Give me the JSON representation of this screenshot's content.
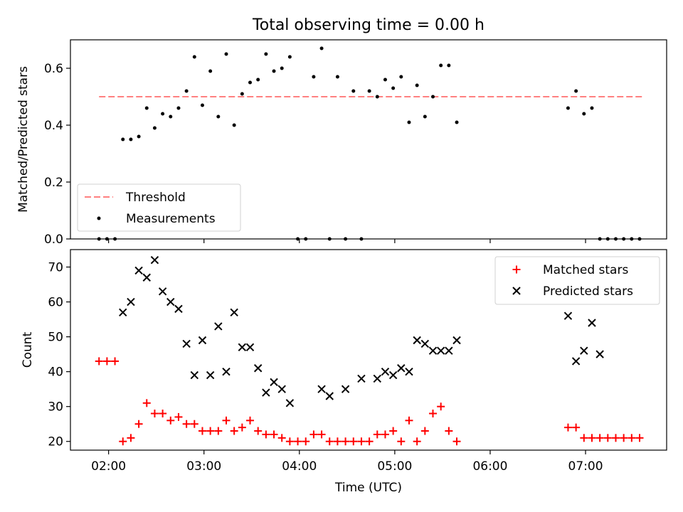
{
  "title": "Total observing time = 0.00 h",
  "chart_data": [
    {
      "type": "scatter",
      "name": "ratio-panel",
      "ylabel": "Matched/Predicted stars",
      "ylim": [
        0,
        0.7
      ],
      "yticks": [
        0.0,
        0.2,
        0.4,
        0.6
      ],
      "ytick_labels": [
        "0.0",
        "0.2",
        "0.4",
        "0.6"
      ],
      "xlim": [
        "01:36",
        "07:51"
      ],
      "threshold": {
        "value": 0.5,
        "x_start": "01:54",
        "x_end": "07:36",
        "color": "#ff8080"
      },
      "legend": {
        "position": "lower-left",
        "threshold_label": "Threshold",
        "measurements_label": "Measurements"
      },
      "series": [
        {
          "name": "Measurements",
          "color": "#000000",
          "x": [
            "01:54",
            "01:59",
            "02:04",
            "02:09",
            "02:14",
            "02:19",
            "02:24",
            "02:29",
            "02:34",
            "02:39",
            "02:44",
            "02:49",
            "02:54",
            "02:59",
            "03:04",
            "03:09",
            "03:14",
            "03:19",
            "03:24",
            "03:29",
            "03:34",
            "03:39",
            "03:44",
            "03:49",
            "03:54",
            "03:59",
            "04:04",
            "04:09",
            "04:14",
            "04:19",
            "04:24",
            "04:29",
            "04:34",
            "04:39",
            "04:44",
            "04:49",
            "04:54",
            "04:59",
            "05:04",
            "05:09",
            "05:14",
            "05:19",
            "05:24",
            "05:29",
            "05:34",
            "05:39",
            "06:49",
            "06:54",
            "06:59",
            "07:04",
            "07:09",
            "07:14",
            "07:19",
            "07:24",
            "07:29",
            "07:34"
          ],
          "y": [
            0.0,
            0.0,
            0.0,
            0.35,
            0.35,
            0.36,
            0.46,
            0.39,
            0.44,
            0.43,
            0.46,
            0.52,
            0.64,
            0.47,
            0.59,
            0.43,
            0.65,
            0.4,
            0.51,
            0.55,
            0.56,
            0.65,
            0.59,
            0.6,
            0.64,
            0.0,
            0.0,
            0.57,
            0.67,
            0.0,
            0.57,
            0.0,
            0.52,
            0.0,
            0.52,
            0.5,
            0.56,
            0.53,
            0.57,
            0.41,
            0.54,
            0.43,
            0.5,
            0.61,
            0.61,
            0.41,
            0.46,
            0.52,
            0.44,
            0.46,
            0.0,
            0.0,
            0.0,
            0.0,
            0.0,
            0.0
          ]
        }
      ]
    },
    {
      "type": "scatter",
      "name": "count-panel",
      "xlabel": "Time (UTC)",
      "ylabel": "Count",
      "ylim": [
        17.5,
        75
      ],
      "yticks": [
        20,
        30,
        40,
        50,
        60,
        70
      ],
      "xlim": [
        "01:36",
        "07:51"
      ],
      "xticks": [
        "02:00",
        "03:00",
        "04:00",
        "05:00",
        "06:00",
        "07:00"
      ],
      "legend": {
        "position": "top-right"
      },
      "series": [
        {
          "name": "Matched stars",
          "color": "#ff0000",
          "marker": "plus",
          "x": [
            "01:54",
            "01:59",
            "02:04",
            "02:09",
            "02:14",
            "02:19",
            "02:24",
            "02:29",
            "02:34",
            "02:39",
            "02:44",
            "02:49",
            "02:54",
            "02:59",
            "03:04",
            "03:09",
            "03:14",
            "03:19",
            "03:24",
            "03:29",
            "03:34",
            "03:39",
            "03:44",
            "03:49",
            "03:54",
            "03:59",
            "04:04",
            "04:09",
            "04:14",
            "04:19",
            "04:24",
            "04:29",
            "04:34",
            "04:39",
            "04:44",
            "04:49",
            "04:54",
            "04:59",
            "05:04",
            "05:09",
            "05:14",
            "05:19",
            "05:24",
            "05:29",
            "05:34",
            "05:39",
            "06:49",
            "06:54",
            "06:59",
            "07:04",
            "07:09",
            "07:14",
            "07:19",
            "07:24",
            "07:29",
            "07:34"
          ],
          "y": [
            43,
            43,
            43,
            20,
            21,
            25,
            31,
            28,
            28,
            26,
            27,
            25,
            25,
            23,
            23,
            23,
            26,
            23,
            24,
            26,
            23,
            22,
            22,
            21,
            20,
            20,
            20,
            22,
            22,
            20,
            20,
            20,
            20,
            20,
            20,
            22,
            22,
            23,
            20,
            26,
            20,
            23,
            28,
            30,
            23,
            20,
            24,
            24,
            21,
            21,
            21,
            21,
            21,
            21,
            21,
            21
          ]
        },
        {
          "name": "Predicted stars",
          "color": "#000000",
          "marker": "x",
          "x": [
            "02:09",
            "02:14",
            "02:19",
            "02:24",
            "02:29",
            "02:34",
            "02:39",
            "02:44",
            "02:49",
            "02:54",
            "02:59",
            "03:04",
            "03:09",
            "03:14",
            "03:19",
            "03:24",
            "03:29",
            "03:34",
            "03:39",
            "03:44",
            "03:49",
            "03:54",
            "04:14",
            "04:19",
            "04:29",
            "04:39",
            "04:49",
            "04:54",
            "04:59",
            "05:04",
            "05:09",
            "05:14",
            "05:19",
            "05:24",
            "05:29",
            "05:34",
            "05:39",
            "06:49",
            "06:54",
            "06:59",
            "07:04",
            "07:09"
          ],
          "y": [
            57,
            60,
            69,
            67,
            72,
            63,
            60,
            58,
            48,
            39,
            49,
            39,
            53,
            40,
            57,
            47,
            47,
            41,
            34,
            37,
            35,
            31,
            35,
            33,
            35,
            38,
            38,
            40,
            39,
            41,
            40,
            49,
            48,
            46,
            46,
            46,
            49,
            56,
            43,
            46,
            54,
            45
          ]
        }
      ]
    }
  ]
}
